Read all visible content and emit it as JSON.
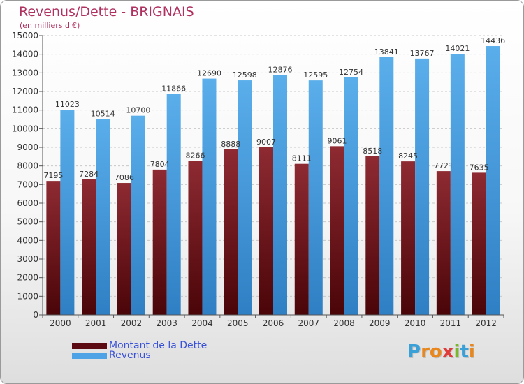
{
  "title": "Revenus/Dette - BRIGNAIS",
  "subtitle": "(en milliers d'€)",
  "colors": {
    "dette": "#7a1c24",
    "revenus": "#4da3e6",
    "title": "#b03060",
    "legend_text": "#3a52d8"
  },
  "logo": {
    "text": "Proxiti"
  },
  "chart_data": {
    "type": "bar",
    "title": "Revenus/Dette - BRIGNAIS",
    "subtitle": "(en milliers d'€)",
    "categories": [
      "2000",
      "2001",
      "2002",
      "2003",
      "2004",
      "2005",
      "2006",
      "2007",
      "2008",
      "2009",
      "2010",
      "2011",
      "2012"
    ],
    "series": [
      {
        "name": "Montant de la Dette",
        "values": [
          7195,
          7284,
          7086,
          7804,
          8266,
          8888,
          9007,
          8111,
          9061,
          8518,
          8245,
          7721,
          7635
        ]
      },
      {
        "name": "Revenus",
        "values": [
          11023,
          10514,
          10700,
          11866,
          12690,
          12598,
          12876,
          12595,
          12754,
          13841,
          13767,
          14021,
          14436
        ]
      }
    ],
    "ylim": [
      0,
      15000
    ],
    "ytick_step": 1000,
    "grid": true,
    "legend": "bottom-left"
  }
}
